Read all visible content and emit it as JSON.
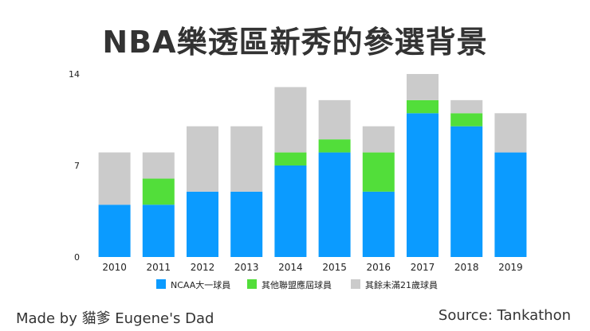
{
  "colors": {
    "ncaa": "#0B9BFF",
    "other_league": "#52DE3A",
    "rest": "#CBCBCB"
  },
  "chart_data": {
    "type": "bar",
    "stacked": true,
    "title": "NBA樂透區新秀的參選背景",
    "categories": [
      "2010",
      "2011",
      "2012",
      "2013",
      "2014",
      "2015",
      "2016",
      "2017",
      "2018",
      "2019"
    ],
    "series": [
      {
        "name": "NCAA大一球員",
        "color_key": "ncaa",
        "values": [
          4,
          4,
          5,
          5,
          7,
          8,
          5,
          11,
          10,
          8
        ]
      },
      {
        "name": "其他聯盟應屆球員",
        "color_key": "other_league",
        "values": [
          0,
          2,
          0,
          0,
          1,
          1,
          3,
          1,
          1,
          0
        ]
      },
      {
        "name": "其餘未滿21歲球員",
        "color_key": "rest",
        "values": [
          4,
          2,
          5,
          5,
          5,
          3,
          2,
          2,
          1,
          3
        ]
      }
    ],
    "ylim": [
      0,
      14
    ],
    "yticks": [
      "0",
      "7",
      "14"
    ],
    "xlabel": "",
    "ylabel": "",
    "legend_position": "bottom"
  },
  "footer": {
    "credit": "Made by 貓爹 Eugene's Dad",
    "source": "Source: Tankathon"
  }
}
